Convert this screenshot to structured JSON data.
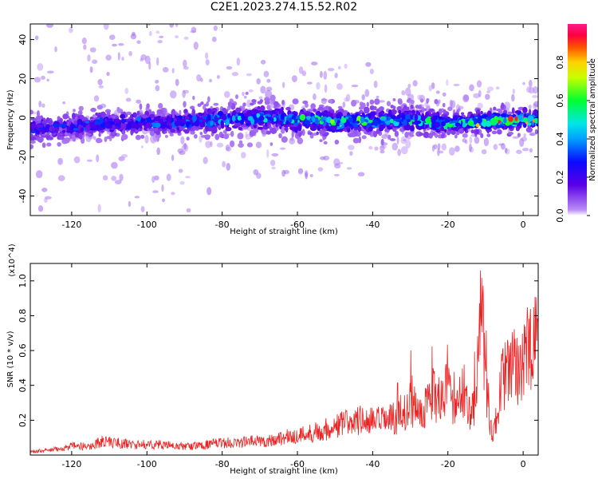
{
  "title": "C2E1.2023.274.15.52.R02",
  "chart_data": [
    {
      "type": "heatmap",
      "xlabel": "Height of straight line (km)",
      "ylabel": "Frequency (Hz)",
      "xlim": [
        -131,
        4
      ],
      "ylim": [
        -50,
        48
      ],
      "xticks": [
        -120,
        -100,
        -80,
        -60,
        -40,
        -20,
        0
      ],
      "yticks": [
        -40,
        -20,
        0,
        20,
        40
      ],
      "colorbar": {
        "label": "Normalized spectral amplitude",
        "range": [
          0.0,
          1.0
        ],
        "ticks": [
          0.0,
          0.2,
          0.4,
          0.6,
          0.8
        ],
        "colormap": "rainbow (purple-blue-cyan-green-yellow-red-magenta)"
      },
      "ridge": {
        "description": "spectral ridge centered near 0 Hz",
        "center_freq_points": [
          [
            -130,
            -6
          ],
          [
            -110,
            -3
          ],
          [
            -90,
            -2
          ],
          [
            -70,
            0
          ],
          [
            -50,
            -2
          ],
          [
            -30,
            -1
          ],
          [
            -20,
            -3
          ],
          [
            -10,
            -2
          ],
          [
            0,
            -1
          ],
          [
            4,
            -1
          ]
        ],
        "peak_amplitude_points": [
          [
            -130,
            0.3
          ],
          [
            -110,
            0.35
          ],
          [
            -90,
            0.35
          ],
          [
            -60,
            0.55
          ],
          [
            -50,
            0.65
          ],
          [
            -30,
            0.55
          ],
          [
            -20,
            0.55
          ],
          [
            -8,
            0.9
          ],
          [
            -3,
            0.95
          ],
          [
            3,
            0.85
          ]
        ]
      }
    },
    {
      "type": "line",
      "xlabel": "Height of straight line (km)",
      "ylabel": "SNR (10 * v/v)",
      "y_multiplier": "(x10^4)",
      "xlim": [
        -131,
        4
      ],
      "ylim": [
        0.0,
        1.1
      ],
      "xticks": [
        -120,
        -100,
        -80,
        -60,
        -40,
        -20,
        0
      ],
      "yticks": [
        0.2,
        0.4,
        0.6,
        0.8,
        1.0
      ],
      "line_color": "#ee2222",
      "series": [
        {
          "x": [
            -131,
            -125,
            -120,
            -115,
            -112,
            -108,
            -104,
            -100,
            -96,
            -92,
            -88,
            -84,
            -80,
            -76,
            -72,
            -68,
            -64,
            -60,
            -56,
            -52,
            -48,
            -44,
            -40,
            -36,
            -32,
            -30,
            -28,
            -26,
            -24,
            -22,
            -20,
            -18,
            -16,
            -14,
            -13,
            -12,
            -11,
            -10,
            -9,
            -8,
            -7,
            -6,
            -5,
            -4,
            -3,
            -2,
            -1,
            0,
            1,
            2,
            3,
            4
          ],
          "values": [
            0.02,
            0.03,
            0.05,
            0.05,
            0.08,
            0.07,
            0.06,
            0.06,
            0.06,
            0.05,
            0.05,
            0.06,
            0.07,
            0.07,
            0.08,
            0.08,
            0.1,
            0.11,
            0.13,
            0.15,
            0.18,
            0.2,
            0.19,
            0.2,
            0.22,
            0.3,
            0.25,
            0.28,
            0.35,
            0.3,
            0.38,
            0.25,
            0.38,
            0.25,
            0.3,
            0.5,
            0.9,
            0.4,
            0.2,
            0.1,
            0.25,
            0.4,
            0.45,
            0.48,
            0.5,
            0.5,
            0.52,
            0.55,
            0.6,
            0.58,
            0.62,
            0.7
          ]
        }
      ]
    }
  ]
}
